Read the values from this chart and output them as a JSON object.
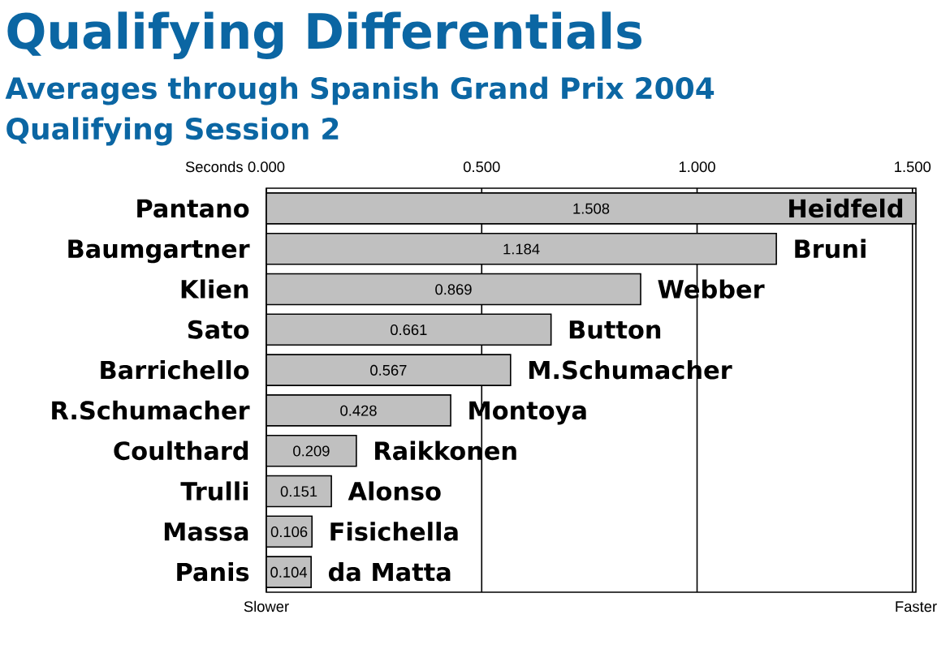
{
  "chart_data": {
    "type": "bar",
    "orientation": "horizontal",
    "title": "Qualifying Differentials",
    "subtitle": "Averages through Spanish Grand Prix 2004 Qualifying Session 2",
    "xlabel": "Seconds",
    "categories": [
      "Pantano",
      "Baumgartner",
      "Klien",
      "Sato",
      "Barrichello",
      "R.Schumacher",
      "Coulthard",
      "Trulli",
      "Massa",
      "Panis"
    ],
    "values": [
      1.508,
      1.184,
      0.869,
      0.661,
      0.567,
      0.428,
      0.209,
      0.151,
      0.106,
      0.104
    ],
    "color": "#c0c0c0",
    "data_labels": true,
    "grid": "x",
    "xlim": [
      0,
      1.508
    ],
    "xticks": [
      {
        "value": 0,
        "label": "0.000"
      },
      {
        "value": 0.5,
        "label": "0.500"
      },
      {
        "value": 1,
        "label": "1.000"
      },
      {
        "value": 1.5,
        "label": "1.500"
      }
    ],
    "annotations": [
      {
        "text": "Heidfeld",
        "x": 1.508,
        "y": "Pantano"
      },
      {
        "text": "Bruni",
        "x": 1.184,
        "y": "Baumgartner"
      },
      {
        "text": "Webber",
        "x": 0.869,
        "y": "Klien"
      },
      {
        "text": "Button",
        "x": 0.661,
        "y": "Sato"
      },
      {
        "text": "M.Schumacher",
        "x": 0.567,
        "y": "Barrichello"
      },
      {
        "text": "Montoya",
        "x": 0.428,
        "y": "R.Schumacher"
      },
      {
        "text": "Raikkonen",
        "x": 0.209,
        "y": "Coulthard"
      },
      {
        "text": "Alonso",
        "x": 0.151,
        "y": "Trulli"
      },
      {
        "text": "Fisichella",
        "x": 0.106,
        "y": "Massa"
      },
      {
        "text": "da Matta",
        "x": 0.104,
        "y": "Panis"
      },
      "Slower",
      "Faster"
    ]
  }
}
